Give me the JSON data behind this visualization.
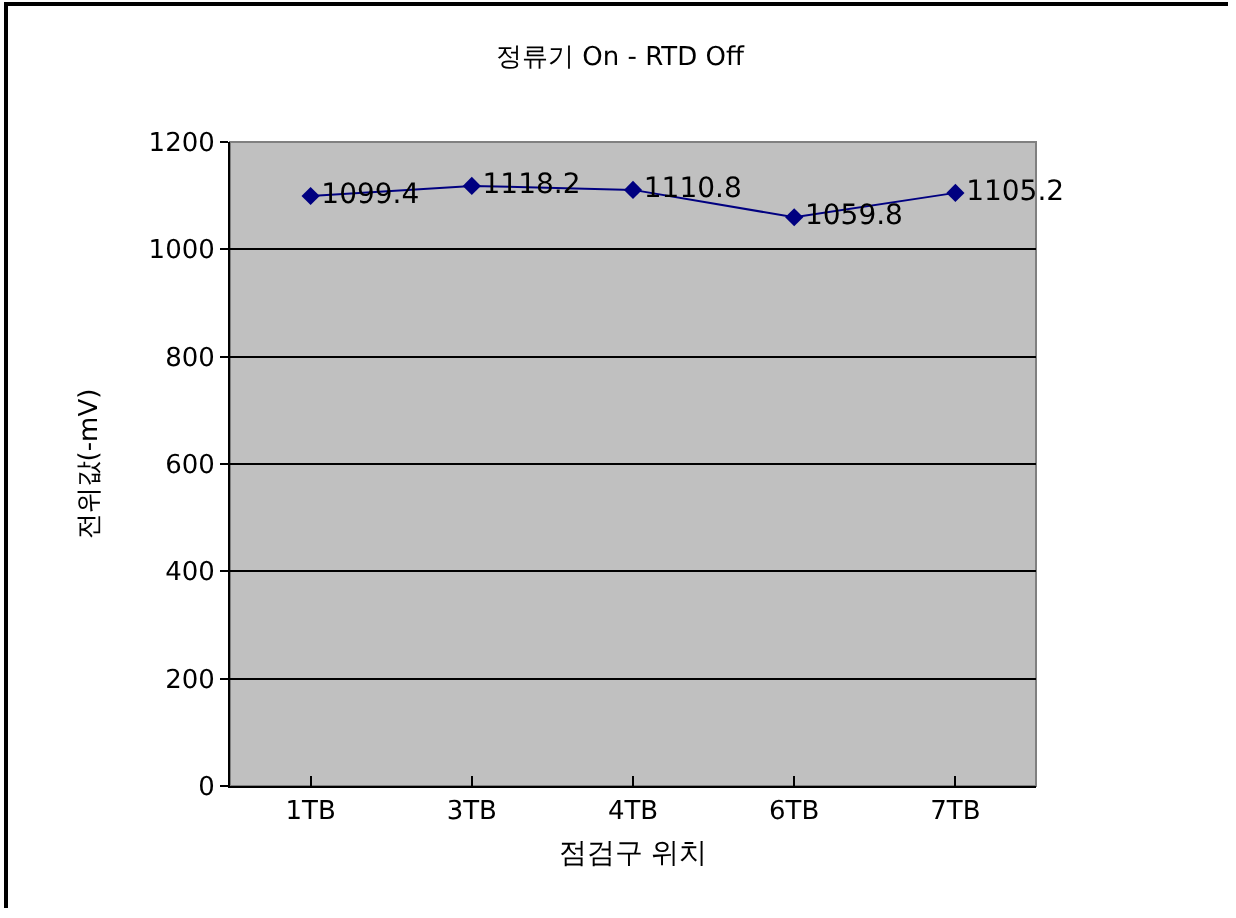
{
  "chart_data": {
    "type": "line",
    "title": "정류기 On - RTD Off",
    "xlabel": "점검구 위치",
    "ylabel": "전위값(-mV)",
    "categories": [
      "1TB",
      "3TB",
      "4TB",
      "6TB",
      "7TB"
    ],
    "series": [
      {
        "color": "#000080",
        "values": [
          1099.4,
          1118.2,
          1110.8,
          1059.8,
          1105.2
        ]
      }
    ],
    "ylim": [
      0,
      1200
    ],
    "yticks": [
      0,
      200,
      400,
      600,
      800,
      1000,
      1200
    ],
    "grid": "y",
    "marker": "diamond",
    "line_style": "solid",
    "data_labels": true
  }
}
